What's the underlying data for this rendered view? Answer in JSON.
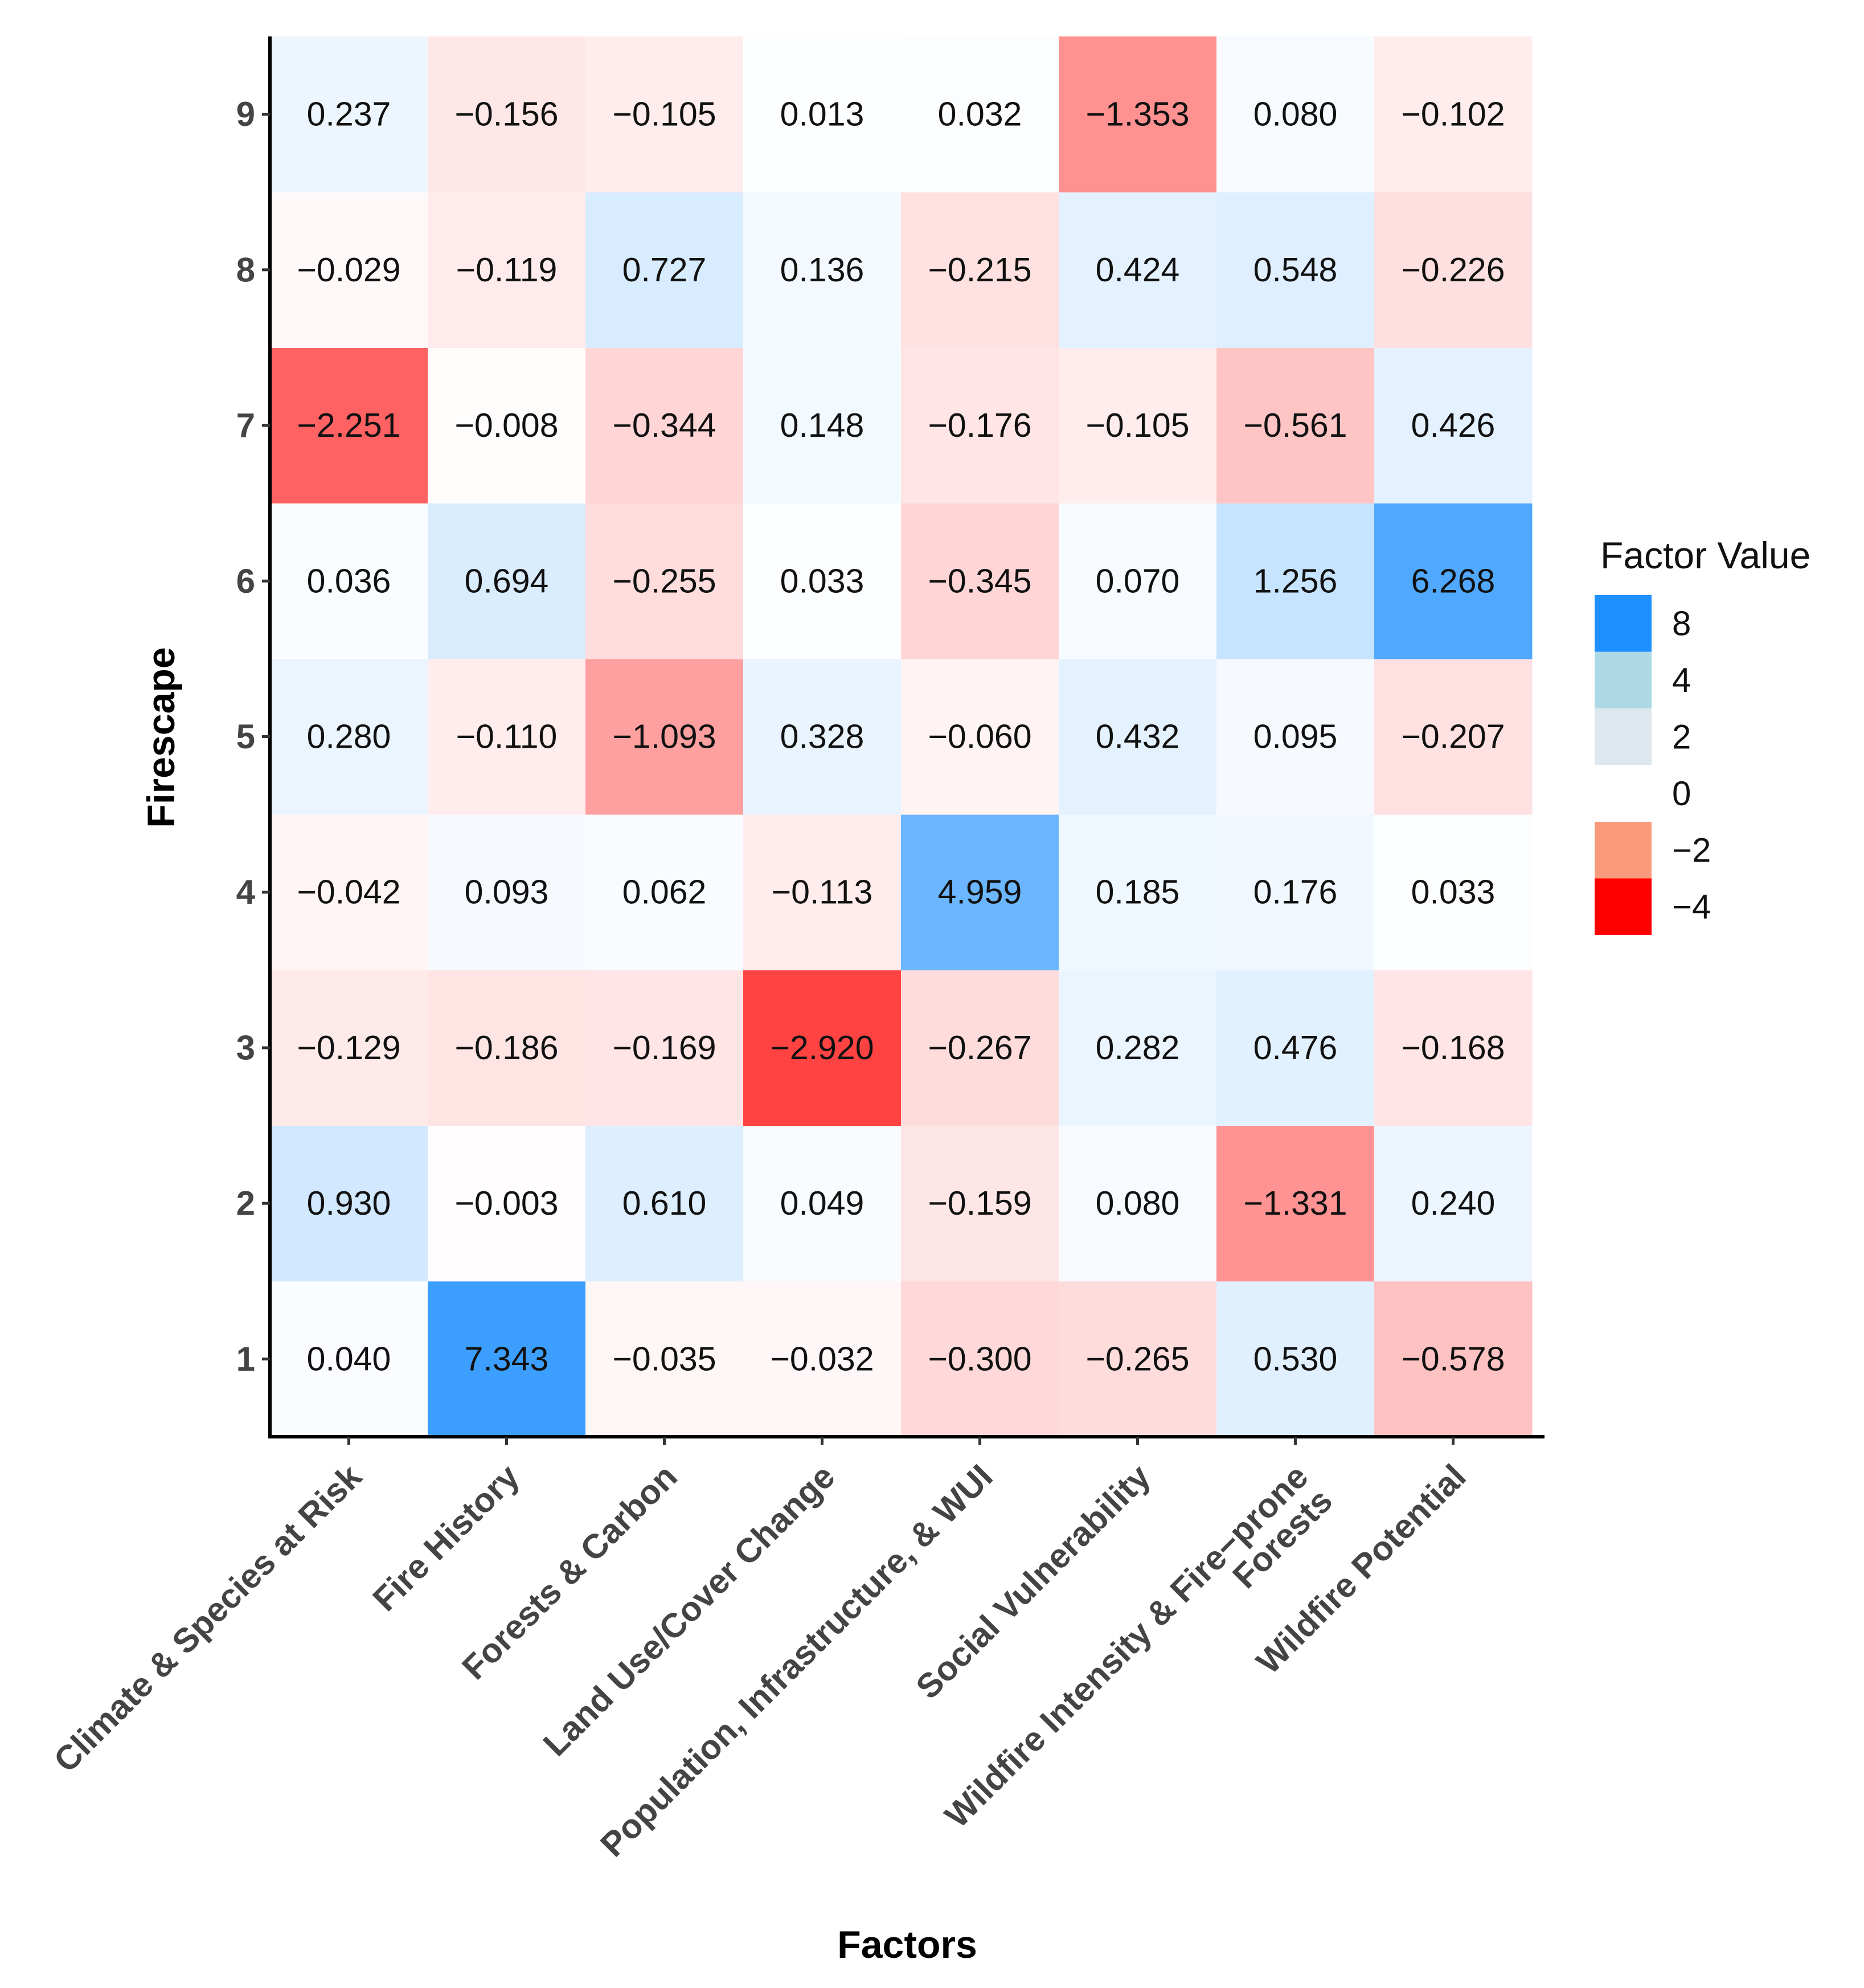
{
  "chart_data": {
    "type": "heatmap",
    "xlabel": "Factors",
    "ylabel": "Firescape",
    "x_categories": [
      [
        "Climate & Species at Risk"
      ],
      [
        "Fire History"
      ],
      [
        "Forests & Carbon"
      ],
      [
        "Land Use/Cover Change"
      ],
      [
        "Population, Infrastructure, & WUI"
      ],
      [
        "Social Vulnerability"
      ],
      [
        "Wildfire Intensity & Fire−prone",
        "Forests"
      ],
      [
        "Wildfire Potential"
      ]
    ],
    "y_categories": [
      "1",
      "2",
      "3",
      "4",
      "5",
      "6",
      "7",
      "8",
      "9"
    ],
    "values": [
      [
        0.04,
        7.343,
        -0.035,
        -0.032,
        -0.3,
        -0.265,
        0.53,
        -0.578
      ],
      [
        0.93,
        -0.003,
        0.61,
        0.049,
        -0.159,
        0.08,
        -1.331,
        0.24
      ],
      [
        -0.129,
        -0.186,
        -0.169,
        -2.92,
        -0.267,
        0.282,
        0.476,
        -0.168
      ],
      [
        -0.042,
        0.093,
        0.062,
        -0.113,
        4.959,
        0.185,
        0.176,
        0.033
      ],
      [
        0.28,
        -0.11,
        -1.093,
        0.328,
        -0.06,
        0.432,
        0.095,
        -0.207
      ],
      [
        0.036,
        0.694,
        -0.255,
        0.033,
        -0.345,
        0.07,
        1.256,
        6.268
      ],
      [
        -2.251,
        -0.008,
        -0.344,
        0.148,
        -0.176,
        -0.105,
        -0.561,
        0.426
      ],
      [
        -0.029,
        -0.119,
        0.727,
        0.136,
        -0.215,
        0.424,
        0.548,
        -0.226
      ],
      [
        0.237,
        -0.156,
        -0.105,
        0.013,
        0.032,
        -1.353,
        0.08,
        -0.102
      ]
    ],
    "value_labels": [
      [
        "0.040",
        "7.343",
        "−0.035",
        "−0.032",
        "−0.300",
        "−0.265",
        "0.530",
        "−0.578"
      ],
      [
        "0.930",
        "−0.003",
        "0.610",
        "0.049",
        "−0.159",
        "0.080",
        "−1.331",
        "0.240"
      ],
      [
        "−0.129",
        "−0.186",
        "−0.169",
        "−2.920",
        "−0.267",
        "0.282",
        "0.476",
        "−0.168"
      ],
      [
        "−0.042",
        "0.093",
        "0.062",
        "−0.113",
        "4.959",
        "0.185",
        "0.176",
        "0.033"
      ],
      [
        "0.280",
        "−0.110",
        "−1.093",
        "0.328",
        "−0.060",
        "0.432",
        "0.095",
        "−0.207"
      ],
      [
        "0.036",
        "0.694",
        "−0.255",
        "0.033",
        "−0.345",
        "0.070",
        "1.256",
        "6.268"
      ],
      [
        "−2.251",
        "−0.008",
        "−0.344",
        "0.148",
        "−0.176",
        "−0.105",
        "−0.561",
        "0.426"
      ],
      [
        "−0.029",
        "−0.119",
        "0.727",
        "0.136",
        "−0.215",
        "0.424",
        "0.548",
        "−0.226"
      ],
      [
        "0.237",
        "−0.156",
        "−0.105",
        "0.013",
        "0.032",
        "−1.353",
        "0.080",
        "−0.102"
      ]
    ],
    "legend": {
      "title": "Factor Value",
      "position": "right",
      "entries": [
        {
          "label": "8",
          "value": 8,
          "color": "#1E90FF"
        },
        {
          "label": "4",
          "value": 4,
          "color": "#ADD8E6"
        },
        {
          "label": "2",
          "value": 2,
          "color": "#DDE8EE"
        },
        {
          "label": "0",
          "value": 0,
          "color": "#FFFFFF"
        },
        {
          "label": "−2",
          "value": -2,
          "color": "#FA9A7C"
        },
        {
          "label": "−4",
          "value": -4,
          "color": "#FF0000"
        }
      ]
    },
    "color_scale": {
      "positive_color": "#1E90FF",
      "zero_color": "#FFFFFF",
      "negative_color": "#FF0000",
      "positive_max": 9,
      "negative_max": -4.5
    },
    "grid": false
  }
}
